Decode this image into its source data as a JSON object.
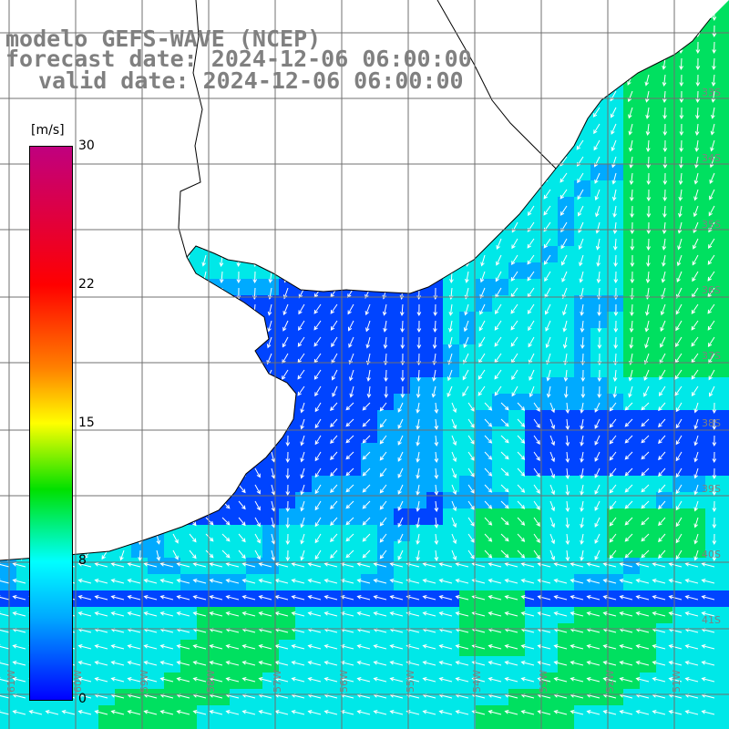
{
  "titles": {
    "line1": "modelo GEFS-WAVE (NCEP)",
    "line2": "forecast date: 2024-12-06 06:00:00",
    "line3": "valid date: 2024-12-06 06:00:00"
  },
  "colorbar": {
    "unit": "[m/s]",
    "ticks": [
      {
        "value": "30",
        "frac": 1.0
      },
      {
        "value": "22",
        "frac": 0.75
      },
      {
        "value": "15",
        "frac": 0.5
      },
      {
        "value": "8",
        "frac": 0.25
      },
      {
        "value": "0",
        "frac": 0.0
      }
    ],
    "colors": [
      "#0000ff",
      "#00aaff",
      "#00ffff",
      "#00e000",
      "#ffff00",
      "#ff8000",
      "#ff0000",
      "#c0007f"
    ]
  },
  "grid": {
    "lat_labels": [
      "33S",
      "34S",
      "35S",
      "36S",
      "37S",
      "38S",
      "39S",
      "40S",
      "41S"
    ],
    "lon_labels": [
      "61W",
      "60W",
      "59W",
      "58W",
      "57W",
      "56W",
      "55W",
      "54W",
      "53W",
      "52W",
      "51W"
    ]
  },
  "colors": {
    "ocean_dark": "#0044ff",
    "ocean_mid": "#00aaff",
    "ocean_light": "#00e8e8",
    "wind_strong": "#00e060",
    "land": "#ffffff",
    "coast": "#000000",
    "gridline": "#707070",
    "arrow": "#ffffff"
  }
}
